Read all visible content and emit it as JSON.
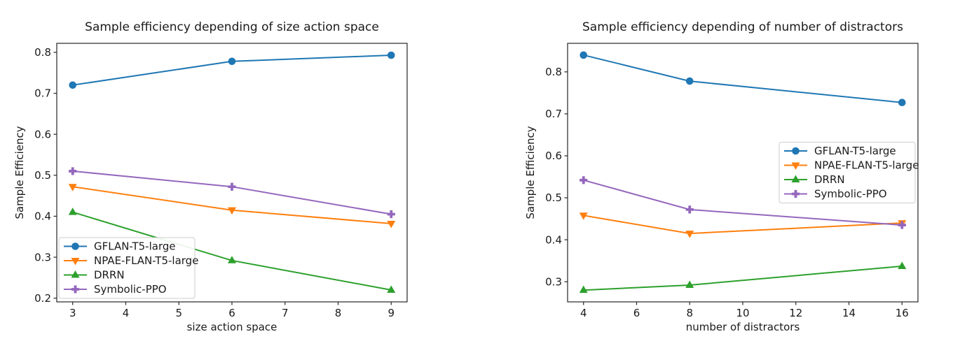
{
  "figure": {
    "background_color": "#ffffff",
    "text_color": "#1a1a1a"
  },
  "chart_data": [
    {
      "type": "line",
      "title": "Sample efficiency depending of size action space",
      "xlabel": "size action space",
      "ylabel": "Sample Efficiency",
      "x": [
        3,
        6,
        9
      ],
      "xticks": [
        3,
        4,
        5,
        6,
        7,
        8,
        9
      ],
      "yticks": [
        0.2,
        0.3,
        0.4,
        0.5,
        0.6,
        0.7,
        0.8
      ],
      "xlim": [
        2.7,
        9.3
      ],
      "ylim": [
        0.191,
        0.822
      ],
      "grid": false,
      "legend_position": "lower-left",
      "series": [
        {
          "name": "GFLAN-T5-large",
          "color": "#1f77b4",
          "marker": "circle",
          "values": [
            0.72,
            0.778,
            0.793
          ]
        },
        {
          "name": "NPAE-FLAN-T5-large",
          "color": "#ff7f0e",
          "marker": "triangle-down",
          "values": [
            0.472,
            0.415,
            0.382
          ]
        },
        {
          "name": "DRRN",
          "color": "#2ca02c",
          "marker": "triangle-up",
          "values": [
            0.41,
            0.292,
            0.22
          ]
        },
        {
          "name": "Symbolic-PPO",
          "color": "#9467bd",
          "marker": "plus",
          "values": [
            0.51,
            0.472,
            0.405
          ]
        }
      ]
    },
    {
      "type": "line",
      "title": "Sample efficiency depending of number of distractors",
      "xlabel": "number of distractors",
      "ylabel": "Sample Efficiency",
      "x": [
        4,
        8,
        16
      ],
      "xticks": [
        4,
        6,
        8,
        10,
        12,
        14,
        16
      ],
      "yticks": [
        0.3,
        0.4,
        0.5,
        0.6,
        0.7,
        0.8
      ],
      "xlim": [
        3.4,
        16.6
      ],
      "ylim": [
        0.252,
        0.868
      ],
      "grid": false,
      "legend_position": "center-right",
      "series": [
        {
          "name": "GFLAN-T5-large",
          "color": "#1f77b4",
          "marker": "circle",
          "values": [
            0.84,
            0.778,
            0.727
          ]
        },
        {
          "name": "NPAE-FLAN-T5-large",
          "color": "#ff7f0e",
          "marker": "triangle-down",
          "values": [
            0.458,
            0.415,
            0.44
          ]
        },
        {
          "name": "DRRN",
          "color": "#2ca02c",
          "marker": "triangle-up",
          "values": [
            0.28,
            0.292,
            0.337
          ]
        },
        {
          "name": "Symbolic-PPO",
          "color": "#9467bd",
          "marker": "plus",
          "values": [
            0.542,
            0.472,
            0.435
          ]
        }
      ]
    }
  ]
}
